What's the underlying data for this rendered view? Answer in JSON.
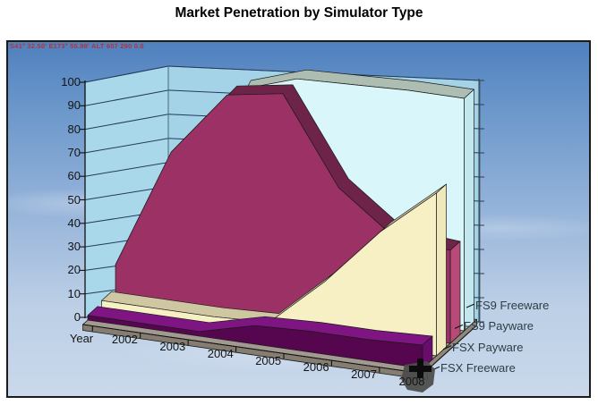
{
  "title": "Market Penetration by Simulator Type",
  "overlay": {
    "gps_text": "S41° 32.50'  E173° 55.98'  ALT 657     290    0.0"
  },
  "decor": {
    "wall_art": "diving-biplane-photo",
    "background": "sky-with-clouds",
    "marker": "dark-aircraft-blob"
  },
  "colors": {
    "wall": "#a9d8ea",
    "back_wall": "#a4d3e7",
    "floor": "#a29a90",
    "floor_edge": "#857d72",
    "gridline": "#223a5e",
    "frame": "#1b1b1b",
    "sky_top": "#4f80be",
    "sky_bottom": "#cad9eb",
    "gps_text": "#b4323c"
  },
  "chart_data": {
    "type": "area",
    "projection": "3d-perspective",
    "title": "Market Penetration by Simulator Type",
    "xlabel": "Year",
    "ylabel": "",
    "x_categories": [
      "2002",
      "2003",
      "2004",
      "2005",
      "2006",
      "2007",
      "2008"
    ],
    "ylim": [
      0,
      100
    ],
    "ytick_step": 10,
    "grid": true,
    "legend_position": "right-depth-axis",
    "series_front_to_back": [
      {
        "name": "FSX Freeware",
        "values": [
          2,
          2,
          2,
          8,
          9,
          9,
          10
        ],
        "color": "#55064f",
        "top_color": "#7e1583",
        "end_color": "#690c6e"
      },
      {
        "name": "FSX Payware",
        "values": [
          3,
          3,
          3,
          4,
          25,
          50,
          70
        ],
        "color": "#f6f0c4",
        "top_color": "#cec7a1",
        "end_color": "#efe8ba"
      },
      {
        "name": "FS9 Payware",
        "values": [
          13,
          65,
          93,
          97,
          60,
          42,
          40
        ],
        "color": "#9c3166",
        "top_color": "#6e2349",
        "end_color": "#b84a77"
      },
      {
        "name": "FS9 Freeware",
        "values": [
          3,
          40,
          90,
          98,
          99,
          100,
          100
        ],
        "color": "#d9f6fa",
        "top_color": "#aebdb2",
        "end_color": "#c3e7ee"
      }
    ]
  }
}
